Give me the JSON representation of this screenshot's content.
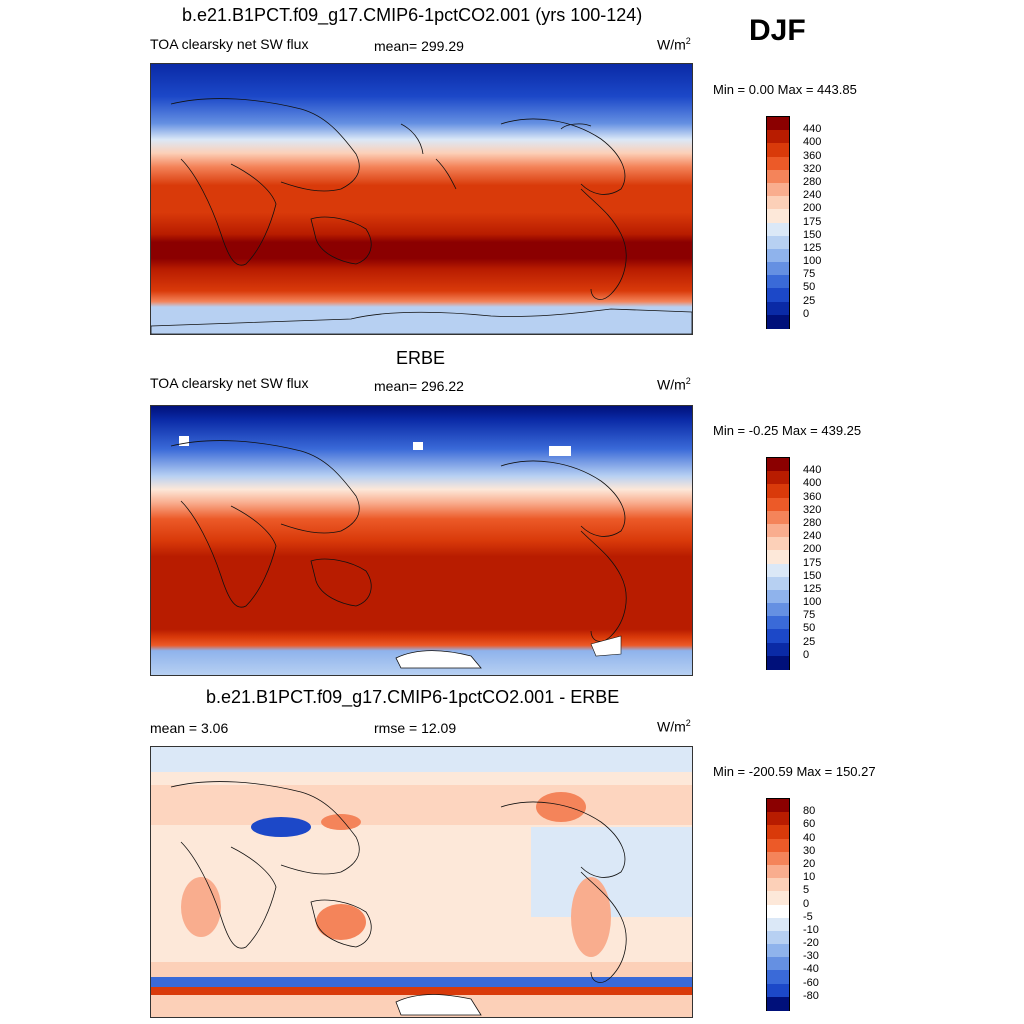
{
  "season": "DJF",
  "panels": [
    {
      "title": "b.e21.B1PCT.f09_g17.CMIP6-1pctCO2.001 (yrs 100-124)",
      "left_label": "TOA clearsky net SW flux",
      "center_label": "mean= 299.29",
      "units": "W/m",
      "units_sup": "2",
      "minmax": "Min =   0.00 Max = 443.85",
      "colorbar": {
        "labels": [
          "440",
          "400",
          "360",
          "320",
          "280",
          "240",
          "200",
          "175",
          "150",
          "125",
          "100",
          "75",
          "50",
          "25",
          "0"
        ],
        "colors": [
          "#8b0000",
          "#b81c00",
          "#d93a0a",
          "#ec5a28",
          "#f4845a",
          "#f9ad8e",
          "#fcd0b8",
          "#fde8d9",
          "#dbe8f7",
          "#b7d0f2",
          "#8fb3ec",
          "#6590e2",
          "#3a6ad8",
          "#1c48c8",
          "#0a2aa6",
          "#00107a"
        ]
      }
    },
    {
      "title": "ERBE",
      "left_label": "TOA clearsky net SW flux",
      "center_label": "mean= 296.22",
      "units": "W/m",
      "units_sup": "2",
      "minmax": "Min =  -0.25 Max = 439.25",
      "colorbar": {
        "labels": [
          "440",
          "400",
          "360",
          "320",
          "280",
          "240",
          "200",
          "175",
          "150",
          "125",
          "100",
          "75",
          "50",
          "25",
          "0"
        ],
        "colors": [
          "#8b0000",
          "#b81c00",
          "#d93a0a",
          "#ec5a28",
          "#f4845a",
          "#f9ad8e",
          "#fcd0b8",
          "#fde8d9",
          "#dbe8f7",
          "#b7d0f2",
          "#8fb3ec",
          "#6590e2",
          "#3a6ad8",
          "#1c48c8",
          "#0a2aa6",
          "#00107a"
        ]
      }
    },
    {
      "title": "b.e21.B1PCT.f09_g17.CMIP6-1pctCO2.001 - ERBE",
      "left_label": "mean =   3.06",
      "center_label": "rmse =  12.09",
      "units": "W/m",
      "units_sup": "2",
      "minmax": "Min = -200.59 Max = 150.27",
      "colorbar": {
        "labels": [
          "80",
          "60",
          "40",
          "30",
          "20",
          "10",
          "5",
          "0",
          "-5",
          "-10",
          "-20",
          "-30",
          "-40",
          "-60",
          "-80"
        ],
        "colors": [
          "#8b0000",
          "#b81c00",
          "#d93a0a",
          "#ec5a28",
          "#f4845a",
          "#f9ad8e",
          "#fcd0b8",
          "#fde8d9",
          "#ffffff",
          "#dbe8f7",
          "#b7d0f2",
          "#8fb3ec",
          "#6590e2",
          "#3a6ad8",
          "#1c48c8",
          "#00107a"
        ]
      }
    }
  ]
}
